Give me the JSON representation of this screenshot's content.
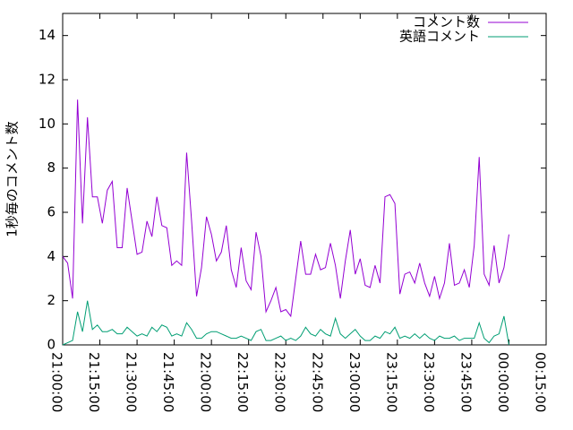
{
  "chart_data": {
    "type": "line",
    "y_label": "1秒毎のコメント数",
    "x": [
      "21:00:00",
      "21:02:00",
      "21:04:00",
      "21:06:00",
      "21:08:00",
      "21:10:00",
      "21:12:00",
      "21:14:00",
      "21:16:00",
      "21:18:00",
      "21:20:00",
      "21:22:00",
      "21:24:00",
      "21:26:00",
      "21:28:00",
      "21:30:00",
      "21:32:00",
      "21:34:00",
      "21:36:00",
      "21:38:00",
      "21:40:00",
      "21:42:00",
      "21:44:00",
      "21:46:00",
      "21:48:00",
      "21:50:00",
      "21:52:00",
      "21:54:00",
      "21:56:00",
      "21:58:00",
      "22:00:00",
      "22:02:00",
      "22:04:00",
      "22:06:00",
      "22:08:00",
      "22:10:00",
      "22:12:00",
      "22:14:00",
      "22:16:00",
      "22:18:00",
      "22:20:00",
      "22:22:00",
      "22:24:00",
      "22:26:00",
      "22:28:00",
      "22:30:00",
      "22:32:00",
      "22:34:00",
      "22:36:00",
      "22:38:00",
      "22:40:00",
      "22:42:00",
      "22:44:00",
      "22:46:00",
      "22:48:00",
      "22:50:00",
      "22:52:00",
      "22:54:00",
      "22:56:00",
      "22:58:00",
      "23:00:00",
      "23:02:00",
      "23:04:00",
      "23:06:00",
      "23:08:00",
      "23:10:00",
      "23:12:00",
      "23:14:00",
      "23:16:00",
      "23:18:00",
      "23:20:00",
      "23:22:00",
      "23:24:00",
      "23:26:00",
      "23:28:00",
      "23:30:00",
      "23:32:00",
      "23:34:00",
      "23:36:00",
      "23:38:00",
      "23:40:00",
      "23:42:00",
      "23:44:00",
      "23:46:00",
      "23:48:00",
      "23:50:00",
      "23:52:00",
      "23:54:00",
      "23:56:00",
      "23:58:00",
      "00:00:00"
    ],
    "series": [
      {
        "name": "コメント数",
        "color": "#9400d3",
        "values": [
          4.0,
          3.7,
          2.1,
          11.1,
          5.5,
          10.3,
          6.7,
          6.7,
          5.5,
          7.0,
          7.4,
          4.4,
          4.4,
          7.1,
          5.6,
          4.1,
          4.2,
          5.6,
          4.9,
          6.7,
          5.4,
          5.3,
          3.6,
          3.8,
          3.6,
          8.7,
          5.6,
          2.2,
          3.5,
          5.8,
          5.0,
          3.8,
          4.2,
          5.4,
          3.4,
          2.6,
          4.4,
          2.9,
          2.5,
          5.1,
          4.0,
          1.5,
          2.0,
          2.6,
          1.5,
          1.6,
          1.3,
          3.0,
          4.7,
          3.2,
          3.2,
          4.1,
          3.4,
          3.5,
          4.6,
          3.6,
          2.1,
          3.8,
          5.2,
          3.2,
          3.9,
          2.7,
          2.6,
          3.6,
          2.8,
          6.7,
          6.8,
          6.4,
          2.3,
          3.2,
          3.3,
          2.8,
          3.7,
          2.8,
          2.2,
          3.1,
          2.1,
          2.8,
          4.6,
          2.7,
          2.8,
          3.4,
          2.6,
          4.5,
          8.5,
          3.2,
          2.7,
          4.5,
          2.8,
          3.5,
          5.0
        ]
      },
      {
        "name": "英語コメント",
        "color": "#009e73",
        "values": [
          0,
          0.1,
          0.2,
          1.5,
          0.6,
          2.0,
          0.7,
          0.9,
          0.6,
          0.6,
          0.7,
          0.5,
          0.5,
          0.8,
          0.6,
          0.4,
          0.5,
          0.4,
          0.8,
          0.6,
          0.9,
          0.8,
          0.4,
          0.5,
          0.4,
          1.0,
          0.7,
          0.3,
          0.3,
          0.5,
          0.6,
          0.6,
          0.5,
          0.4,
          0.3,
          0.3,
          0.4,
          0.3,
          0.2,
          0.6,
          0.7,
          0.2,
          0.2,
          0.3,
          0.4,
          0.2,
          0.3,
          0.2,
          0.4,
          0.8,
          0.5,
          0.4,
          0.7,
          0.5,
          0.4,
          1.2,
          0.5,
          0.3,
          0.5,
          0.7,
          0.4,
          0.2,
          0.2,
          0.4,
          0.3,
          0.6,
          0.5,
          0.8,
          0.3,
          0.4,
          0.3,
          0.5,
          0.3,
          0.5,
          0.3,
          0.2,
          0.4,
          0.3,
          0.3,
          0.4,
          0.2,
          0.3,
          0.3,
          0.3,
          1.0,
          0.3,
          0.1,
          0.4,
          0.5,
          1.3,
          0.0
        ]
      }
    ],
    "xlim": [
      "21:00:00",
      "00:15:00"
    ],
    "xticks": [
      "21:00:00",
      "21:15:00",
      "21:30:00",
      "21:45:00",
      "22:00:00",
      "22:15:00",
      "22:30:00",
      "22:45:00",
      "23:00:00",
      "23:15:00",
      "23:30:00",
      "23:45:00",
      "00:00:00",
      "00:15:00"
    ],
    "ylim": [
      0,
      15
    ],
    "yticks": [
      0,
      2,
      4,
      6,
      8,
      10,
      12,
      14
    ],
    "legend": "top-right"
  }
}
